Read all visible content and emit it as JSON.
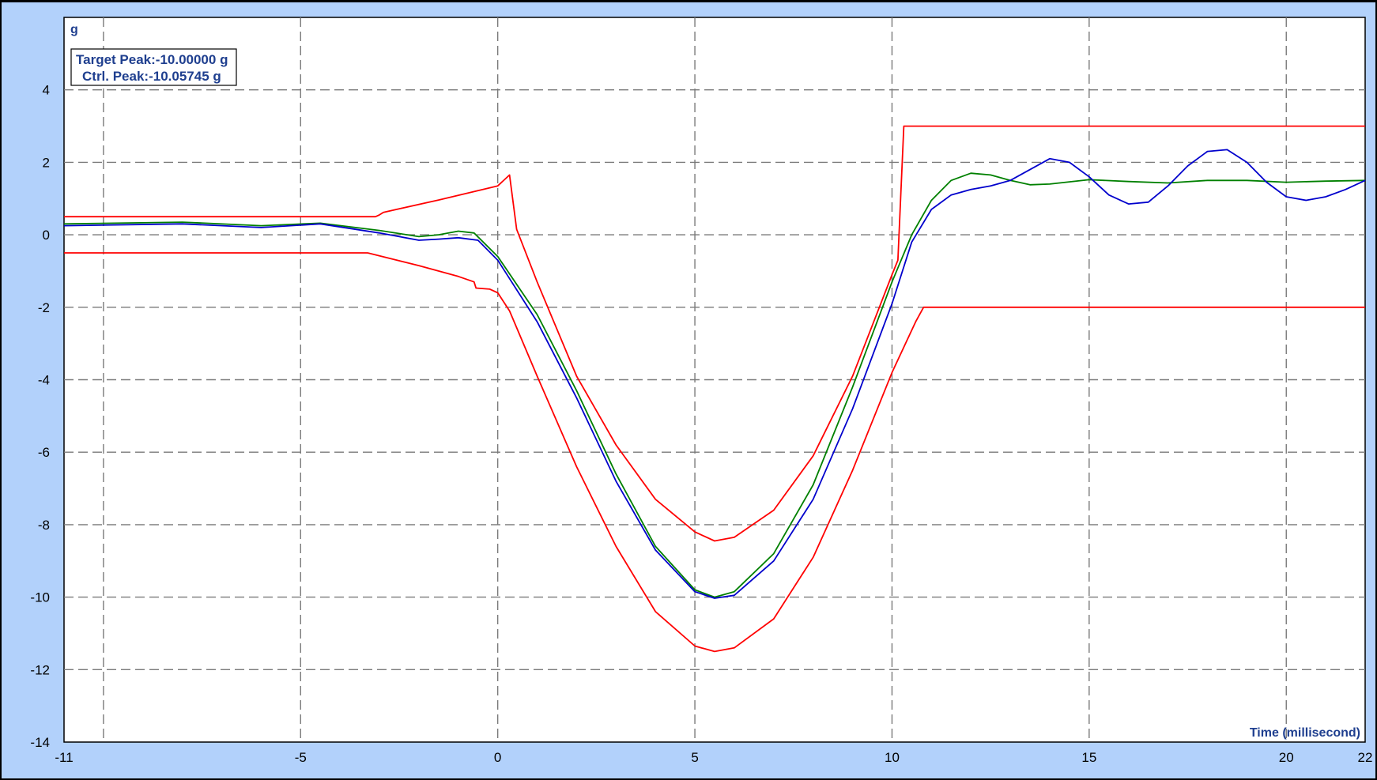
{
  "chart_data": {
    "type": "line",
    "xlabel": "Time (millisecond)",
    "ylabel": "g",
    "xlim": [
      -11,
      22
    ],
    "ylim": [
      -14,
      6
    ],
    "x_ticks": [
      -11,
      -5,
      0,
      5,
      10,
      15,
      20,
      22
    ],
    "y_ticks": [
      4,
      2,
      0,
      -2,
      -4,
      -6,
      -8,
      -10,
      -12,
      -14
    ],
    "x_grid": [
      -10,
      -5,
      0,
      5,
      10,
      15,
      20
    ],
    "y_grid": [
      4,
      2,
      0,
      -2,
      -4,
      -6,
      -8,
      -10,
      -12
    ],
    "grid": true,
    "annotations": [
      "Target Peak:-10.00000 g",
      "Ctrl. Peak:-10.05745 g"
    ],
    "colors": {
      "target": "#008000",
      "control": "#0000cc",
      "tolerance": "#ff0000",
      "background": "#b2d1fb",
      "label": "#1f3f8f"
    },
    "series": [
      {
        "id": "upper",
        "color": "#ff0000",
        "points": [
          [
            -11,
            0.5
          ],
          [
            -3.1,
            0.5
          ],
          [
            -3.0,
            0.55
          ],
          [
            -2.9,
            0.62
          ],
          [
            -1.5,
            0.96
          ],
          [
            0,
            1.35
          ],
          [
            0.3,
            1.65
          ],
          [
            0.48,
            0.15
          ],
          [
            1,
            -1.3
          ],
          [
            2,
            -3.9
          ],
          [
            3,
            -5.8
          ],
          [
            4,
            -7.3
          ],
          [
            5,
            -8.2
          ],
          [
            5.5,
            -8.45
          ],
          [
            6,
            -8.35
          ],
          [
            7,
            -7.6
          ],
          [
            8,
            -6.1
          ],
          [
            9,
            -3.9
          ],
          [
            10,
            -1.1
          ],
          [
            10.15,
            -0.7
          ],
          [
            10.3,
            3
          ],
          [
            22,
            3
          ]
        ]
      },
      {
        "id": "lower",
        "color": "#ff0000",
        "points": [
          [
            -11,
            -0.5
          ],
          [
            -3.3,
            -0.5
          ],
          [
            -2,
            -0.85
          ],
          [
            -1,
            -1.15
          ],
          [
            -0.6,
            -1.3
          ],
          [
            -0.55,
            -1.47
          ],
          [
            -0.2,
            -1.5
          ],
          [
            0,
            -1.6
          ],
          [
            0.3,
            -2.1
          ],
          [
            1,
            -3.9
          ],
          [
            2,
            -6.4
          ],
          [
            3,
            -8.6
          ],
          [
            4,
            -10.4
          ],
          [
            5,
            -11.35
          ],
          [
            5.5,
            -11.5
          ],
          [
            6,
            -11.4
          ],
          [
            7,
            -10.6
          ],
          [
            8,
            -8.9
          ],
          [
            9,
            -6.5
          ],
          [
            10,
            -3.8
          ],
          [
            10.6,
            -2.4
          ],
          [
            10.8,
            -2
          ],
          [
            22,
            -2
          ]
        ]
      },
      {
        "id": "target",
        "color": "#008000",
        "points": [
          [
            -11,
            0.3
          ],
          [
            -8,
            0.35
          ],
          [
            -6,
            0.25
          ],
          [
            -4.5,
            0.32
          ],
          [
            -3,
            0.12
          ],
          [
            -2,
            -0.05
          ],
          [
            -1.5,
            0
          ],
          [
            -1,
            0.1
          ],
          [
            -0.6,
            0.05
          ],
          [
            0,
            -0.6
          ],
          [
            1,
            -2.2
          ],
          [
            2,
            -4.3
          ],
          [
            3,
            -6.6
          ],
          [
            4,
            -8.6
          ],
          [
            5,
            -9.8
          ],
          [
            5.5,
            -10
          ],
          [
            6,
            -9.85
          ],
          [
            7,
            -8.8
          ],
          [
            8,
            -6.9
          ],
          [
            9,
            -4.2
          ],
          [
            10,
            -1.3
          ],
          [
            10.5,
            0
          ],
          [
            11,
            0.95
          ],
          [
            11.5,
            1.5
          ],
          [
            12,
            1.7
          ],
          [
            12.5,
            1.65
          ],
          [
            13,
            1.5
          ],
          [
            13.5,
            1.38
          ],
          [
            14,
            1.4
          ],
          [
            15,
            1.52
          ],
          [
            16,
            1.47
          ],
          [
            17,
            1.43
          ],
          [
            18,
            1.5
          ],
          [
            19,
            1.5
          ],
          [
            20,
            1.45
          ],
          [
            21,
            1.48
          ],
          [
            22,
            1.5
          ]
        ]
      },
      {
        "id": "control",
        "color": "#0000cc",
        "points": [
          [
            -11,
            0.25
          ],
          [
            -8,
            0.3
          ],
          [
            -6,
            0.2
          ],
          [
            -4.5,
            0.3
          ],
          [
            -3,
            0.05
          ],
          [
            -2,
            -0.15
          ],
          [
            -1.5,
            -0.12
          ],
          [
            -1,
            -0.08
          ],
          [
            -0.5,
            -0.15
          ],
          [
            0,
            -0.7
          ],
          [
            1,
            -2.4
          ],
          [
            2,
            -4.5
          ],
          [
            3,
            -6.8
          ],
          [
            4,
            -8.7
          ],
          [
            5,
            -9.85
          ],
          [
            5.5,
            -10.03
          ],
          [
            6,
            -9.95
          ],
          [
            7,
            -9.0
          ],
          [
            8,
            -7.3
          ],
          [
            9,
            -4.8
          ],
          [
            10,
            -1.9
          ],
          [
            10.5,
            -0.2
          ],
          [
            11,
            0.7
          ],
          [
            11.5,
            1.1
          ],
          [
            12,
            1.25
          ],
          [
            12.5,
            1.35
          ],
          [
            13,
            1.5
          ],
          [
            13.5,
            1.8
          ],
          [
            14,
            2.1
          ],
          [
            14.5,
            2.0
          ],
          [
            15,
            1.6
          ],
          [
            15.5,
            1.1
          ],
          [
            16,
            0.85
          ],
          [
            16.5,
            0.9
          ],
          [
            17,
            1.35
          ],
          [
            17.5,
            1.9
          ],
          [
            18,
            2.3
          ],
          [
            18.5,
            2.35
          ],
          [
            19,
            2.0
          ],
          [
            19.5,
            1.45
          ],
          [
            20,
            1.05
          ],
          [
            20.5,
            0.95
          ],
          [
            21,
            1.05
          ],
          [
            21.5,
            1.25
          ],
          [
            22,
            1.5
          ]
        ]
      }
    ]
  }
}
